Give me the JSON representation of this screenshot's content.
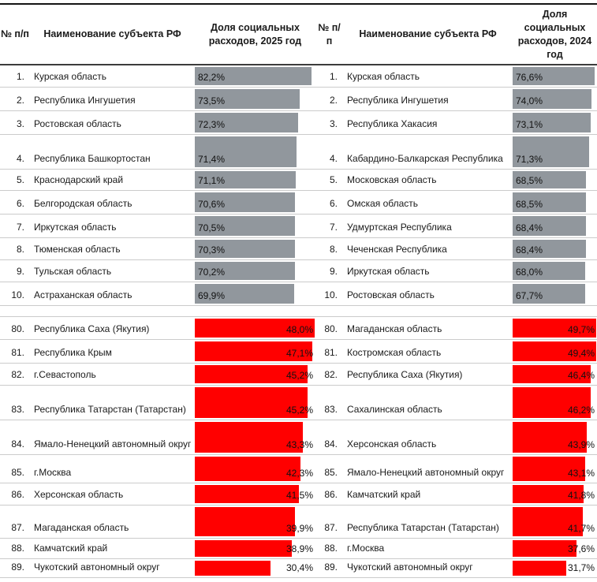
{
  "colors": {
    "bar_top_gray": "#91979d",
    "bar_bottom_red": "#ff0000",
    "gridline": "#cbcbcb",
    "text": "#1a1a1a"
  },
  "left_table": {
    "header": {
      "num": "№ п/п",
      "name": "Наименование субъекта РФ",
      "value": "Доля социальных расходов, 2025 год"
    },
    "top10": [
      {
        "rank": "1.",
        "region": "Курская область",
        "value": 82.2,
        "display": "82,2%"
      },
      {
        "rank": "2.",
        "region": "Республика Ингушетия",
        "value": 73.5,
        "display": "73,5%"
      },
      {
        "rank": "3.",
        "region": "Ростовская область",
        "value": 72.3,
        "display": "72,3%"
      },
      {
        "rank": "4.",
        "region": "Республика Башкортостан",
        "value": 71.4,
        "display": "71,4%"
      },
      {
        "rank": "5.",
        "region": "Краснодарский край",
        "value": 71.1,
        "display": "71,1%"
      },
      {
        "rank": "6.",
        "region": "Белгородская область",
        "value": 70.6,
        "display": "70,6%"
      },
      {
        "rank": "7.",
        "region": "Иркутская область",
        "value": 70.5,
        "display": "70,5%"
      },
      {
        "rank": "8.",
        "region": "Тюменская область",
        "value": 70.3,
        "display": "70,3%"
      },
      {
        "rank": "9.",
        "region": "Тульская область",
        "value": 70.2,
        "display": "70,2%"
      },
      {
        "rank": "10.",
        "region": "Астраханская область",
        "value": 69.9,
        "display": "69,9%"
      }
    ],
    "bottom10": [
      {
        "rank": "80.",
        "region": "Республика Саха (Якутия)",
        "value": 48.0,
        "display": "48,0%"
      },
      {
        "rank": "81.",
        "region": "Республика Крым",
        "value": 47.1,
        "display": "47,1%"
      },
      {
        "rank": "82.",
        "region": "г.Севастополь",
        "value": 45.2,
        "display": "45,2%"
      },
      {
        "rank": "83.",
        "region": "Республика Татарстан (Татарстан)",
        "value": 45.2,
        "display": "45,2%"
      },
      {
        "rank": "84.",
        "region": "Ямало-Ненецкий автономный округ",
        "value": 43.3,
        "display": "43,3%"
      },
      {
        "rank": "85.",
        "region": "г.Москва",
        "value": 42.3,
        "display": "42,3%"
      },
      {
        "rank": "86.",
        "region": "Херсонская область",
        "value": 41.5,
        "display": "41,5%"
      },
      {
        "rank": "87.",
        "region": "Магаданская область",
        "value": 39.9,
        "display": "39,9%"
      },
      {
        "rank": "88.",
        "region": "Камчатский край",
        "value": 38.9,
        "display": "38,9%"
      },
      {
        "rank": "89.",
        "region": "Чукотский автономный округ",
        "value": 30.4,
        "display": "30,4%"
      }
    ]
  },
  "right_table": {
    "header": {
      "num": "№ п/п",
      "name": "Наименование субъекта РФ",
      "value": "Доля социальных расходов, 2024 год"
    },
    "top10": [
      {
        "rank": "1.",
        "region": "Курская область",
        "value": 76.6,
        "display": "76,6%"
      },
      {
        "rank": "2.",
        "region": "Республика Ингушетия",
        "value": 74.0,
        "display": "74,0%"
      },
      {
        "rank": "3.",
        "region": "Республика Хакасия",
        "value": 73.1,
        "display": "73,1%"
      },
      {
        "rank": "4.",
        "region": "Кабардино-Балкарская Республика",
        "value": 71.3,
        "display": "71,3%"
      },
      {
        "rank": "5.",
        "region": "Московская область",
        "value": 68.5,
        "display": "68,5%"
      },
      {
        "rank": "6.",
        "region": "Омская область",
        "value": 68.5,
        "display": "68,5%"
      },
      {
        "rank": "7.",
        "region": "Удмуртская Республика",
        "value": 68.4,
        "display": "68,4%"
      },
      {
        "rank": "8.",
        "region": "Чеченская Республика",
        "value": 68.4,
        "display": "68,4%"
      },
      {
        "rank": "9.",
        "region": "Иркутская область",
        "value": 68.0,
        "display": "68,0%"
      },
      {
        "rank": "10.",
        "region": "Ростовская область",
        "value": 67.7,
        "display": "67,7%"
      }
    ],
    "bottom10": [
      {
        "rank": "80.",
        "region": "Магаданская область",
        "value": 49.7,
        "display": "49,7%"
      },
      {
        "rank": "81.",
        "region": "Костромская область",
        "value": 49.4,
        "display": "49,4%"
      },
      {
        "rank": "82.",
        "region": "Республика Саха (Якутия)",
        "value": 46.4,
        "display": "46,4%"
      },
      {
        "rank": "83.",
        "region": "Сахалинская область",
        "value": 46.2,
        "display": "46,2%"
      },
      {
        "rank": "84.",
        "region": "Херсонская область",
        "value": 43.9,
        "display": "43,9%"
      },
      {
        "rank": "85.",
        "region": "Ямало-Ненецкий автономный округ",
        "value": 43.1,
        "display": "43,1%"
      },
      {
        "rank": "86.",
        "region": "Камчатский край",
        "value": 41.8,
        "display": "41,8%"
      },
      {
        "rank": "87.",
        "region": "Республика Татарстан (Татарстан)",
        "value": 41.7,
        "display": "41,7%"
      },
      {
        "rank": "88.",
        "region": "г.Москва",
        "value": 37.6,
        "display": "37,6%"
      },
      {
        "rank": "89.",
        "region": "Чукотский автономный округ",
        "value": 31.7,
        "display": "31,7%"
      }
    ]
  }
}
